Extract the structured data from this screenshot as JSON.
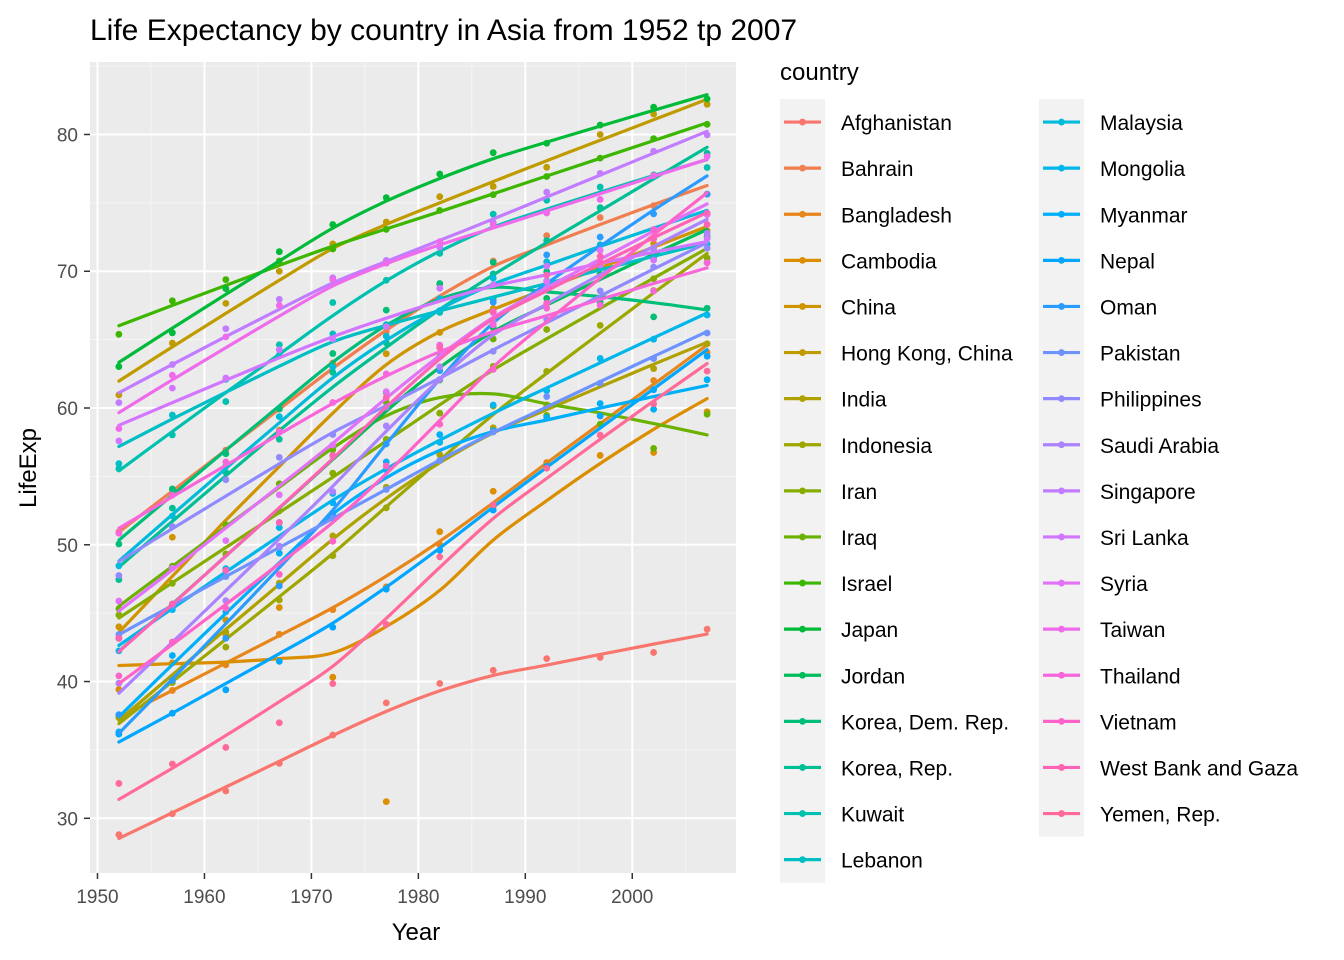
{
  "chart_data": {
    "type": "line",
    "title": "Life Expectancy by country in Asia from 1952 tp 2007",
    "xlabel": "Year",
    "ylabel": "LifeExp",
    "xlim": [
      1949.3,
      2009.7
    ],
    "ylim": [
      26.0,
      85.3
    ],
    "x_ticks": [
      1950,
      1960,
      1970,
      1980,
      1990,
      2000
    ],
    "y_ticks": [
      30,
      40,
      50,
      60,
      70,
      80
    ],
    "grid": true,
    "legend_title": "country",
    "legend_position": "right",
    "x": [
      1952,
      1957,
      1962,
      1967,
      1972,
      1977,
      1982,
      1987,
      1992,
      1997,
      2002,
      2007
    ],
    "series": [
      {
        "name": "Afghanistan",
        "color": "#F8766D",
        "values": [
          28.801,
          30.332,
          31.997,
          34.02,
          36.088,
          38.438,
          39.854,
          40.822,
          41.674,
          41.763,
          42.129,
          43.828
        ]
      },
      {
        "name": "Bahrain",
        "color": "#F07E4E",
        "values": [
          50.939,
          53.832,
          56.923,
          59.923,
          63.3,
          65.593,
          69.052,
          70.75,
          72.601,
          73.925,
          74.795,
          75.635
        ]
      },
      {
        "name": "Bangladesh",
        "color": "#E7861B",
        "values": [
          37.484,
          39.348,
          41.216,
          43.453,
          45.252,
          46.923,
          50.009,
          52.819,
          56.018,
          59.412,
          62.013,
          64.062
        ]
      },
      {
        "name": "Cambodia",
        "color": "#DB8E00",
        "values": [
          39.417,
          41.366,
          43.415,
          45.415,
          40.317,
          31.22,
          50.957,
          53.914,
          55.803,
          56.534,
          56.752,
          59.723
        ]
      },
      {
        "name": "China",
        "color": "#CF9400",
        "values": [
          44.0,
          50.54896,
          44.50136,
          58.38112,
          63.11888,
          63.96736,
          65.525,
          67.274,
          68.69,
          70.426,
          72.028,
          72.961
        ]
      },
      {
        "name": "Hong Kong, China",
        "color": "#C09B00",
        "values": [
          60.96,
          64.75,
          67.65,
          70.0,
          72.0,
          73.6,
          75.45,
          76.2,
          77.601,
          80.0,
          81.495,
          82.208
        ]
      },
      {
        "name": "India",
        "color": "#AFA100",
        "values": [
          37.373,
          40.249,
          43.605,
          47.193,
          50.651,
          54.208,
          56.596,
          58.553,
          60.223,
          61.765,
          62.879,
          64.698
        ]
      },
      {
        "name": "Indonesia",
        "color": "#9DA700",
        "values": [
          37.468,
          39.918,
          42.518,
          45.964,
          49.203,
          52.702,
          56.159,
          60.137,
          62.681,
          66.041,
          68.588,
          70.65
        ]
      },
      {
        "name": "Iran",
        "color": "#86AC00",
        "values": [
          44.869,
          47.181,
          49.325,
          52.469,
          55.234,
          57.702,
          59.62,
          63.04,
          65.742,
          68.042,
          69.451,
          70.964
        ]
      },
      {
        "name": "Iraq",
        "color": "#6BB100",
        "values": [
          45.32,
          48.437,
          51.457,
          54.459,
          56.95,
          60.413,
          62.038,
          65.044,
          59.461,
          58.811,
          57.046,
          59.545
        ]
      },
      {
        "name": "Israel",
        "color": "#3DB600",
        "values": [
          65.39,
          67.84,
          69.39,
          70.75,
          71.63,
          73.06,
          74.45,
          75.6,
          76.93,
          78.269,
          79.696,
          80.745
        ]
      },
      {
        "name": "Japan",
        "color": "#00BA38",
        "values": [
          63.03,
          65.5,
          68.73,
          71.43,
          73.42,
          75.38,
          77.11,
          78.67,
          79.36,
          80.69,
          82.0,
          82.603
        ]
      },
      {
        "name": "Jordan",
        "color": "#00BC5A",
        "values": [
          43.158,
          45.669,
          48.126,
          51.629,
          56.528,
          61.134,
          63.739,
          65.869,
          68.015,
          69.772,
          71.263,
          72.535
        ]
      },
      {
        "name": "Korea, Dem. Rep.",
        "color": "#00BE78",
        "values": [
          50.056,
          54.081,
          56.656,
          59.942,
          63.983,
          67.159,
          69.1,
          70.647,
          69.978,
          67.727,
          66.662,
          67.297
        ]
      },
      {
        "name": "Korea, Rep.",
        "color": "#00BF94",
        "values": [
          47.453,
          52.681,
          55.292,
          57.716,
          62.612,
          64.766,
          67.123,
          69.81,
          72.244,
          74.647,
          77.045,
          78.623
        ]
      },
      {
        "name": "Kuwait",
        "color": "#00C0AF",
        "values": [
          55.565,
          58.033,
          60.47,
          64.624,
          67.712,
          69.343,
          71.309,
          74.174,
          75.19,
          76.156,
          76.904,
          77.588
        ]
      },
      {
        "name": "Lebanon",
        "color": "#00BFC4",
        "values": [
          55.928,
          59.489,
          62.094,
          63.87,
          65.421,
          66.099,
          66.983,
          67.926,
          69.292,
          70.265,
          71.028,
          71.993
        ]
      },
      {
        "name": "Malaysia",
        "color": "#00BBD9",
        "values": [
          48.463,
          52.102,
          55.737,
          59.371,
          63.01,
          65.256,
          68.0,
          69.5,
          70.693,
          71.938,
          73.044,
          74.241
        ]
      },
      {
        "name": "Mongolia",
        "color": "#00B6EB",
        "values": [
          42.244,
          45.248,
          48.251,
          51.253,
          53.754,
          55.491,
          57.489,
          60.222,
          61.271,
          63.625,
          65.033,
          66.803
        ]
      },
      {
        "name": "Myanmar",
        "color": "#00AFF9",
        "values": [
          36.319,
          41.905,
          45.108,
          49.379,
          53.07,
          56.059,
          58.056,
          58.339,
          59.32,
          60.328,
          59.908,
          62.069
        ]
      },
      {
        "name": "Nepal",
        "color": "#00A6FF",
        "values": [
          36.157,
          37.686,
          39.393,
          41.472,
          43.971,
          46.748,
          49.594,
          52.537,
          55.727,
          59.426,
          61.34,
          63.785
        ]
      },
      {
        "name": "Oman",
        "color": "#2B9CFF",
        "values": [
          37.578,
          40.08,
          43.165,
          46.988,
          52.143,
          57.367,
          62.728,
          67.734,
          71.197,
          72.499,
          74.193,
          75.64
        ]
      },
      {
        "name": "Pakistan",
        "color": "#6E93FF",
        "values": [
          43.436,
          45.557,
          47.67,
          49.8,
          51.929,
          54.043,
          56.158,
          58.245,
          60.838,
          61.818,
          63.61,
          65.483
        ]
      },
      {
        "name": "Philippines",
        "color": "#918AFF",
        "values": [
          47.752,
          51.334,
          54.757,
          56.393,
          58.065,
          60.06,
          62.082,
          64.151,
          66.458,
          68.564,
          70.303,
          71.688
        ]
      },
      {
        "name": "Saudi Arabia",
        "color": "#AC83FF",
        "values": [
          39.875,
          42.868,
          45.914,
          49.901,
          53.886,
          58.69,
          63.012,
          66.295,
          68.768,
          70.533,
          71.626,
          72.777
        ]
      },
      {
        "name": "Singapore",
        "color": "#C17CFF",
        "values": [
          60.396,
          63.179,
          65.798,
          67.946,
          69.521,
          70.795,
          71.76,
          73.56,
          75.788,
          77.158,
          78.77,
          79.972
        ]
      },
      {
        "name": "Sri Lanka",
        "color": "#D376FF",
        "values": [
          57.593,
          61.456,
          62.192,
          64.266,
          65.042,
          65.949,
          68.757,
          69.011,
          70.379,
          70.457,
          70.815,
          72.396
        ]
      },
      {
        "name": "Syria",
        "color": "#E272F7",
        "values": [
          45.883,
          48.284,
          50.305,
          53.655,
          57.296,
          61.195,
          64.59,
          66.974,
          69.249,
          71.527,
          73.053,
          74.143
        ]
      },
      {
        "name": "Taiwan",
        "color": "#EF6BEB",
        "values": [
          58.5,
          62.4,
          65.2,
          67.5,
          69.39,
          70.59,
          72.16,
          73.4,
          74.26,
          75.25,
          76.99,
          78.4
        ]
      },
      {
        "name": "Thailand",
        "color": "#F866DC",
        "values": [
          50.848,
          53.63,
          56.061,
          58.285,
          60.405,
          62.494,
          64.597,
          66.084,
          67.298,
          67.521,
          68.564,
          70.616
        ]
      },
      {
        "name": "Vietnam",
        "color": "#FE63CA",
        "values": [
          40.412,
          42.887,
          45.363,
          47.838,
          50.254,
          55.764,
          58.816,
          62.82,
          67.662,
          70.672,
          73.017,
          74.249
        ]
      },
      {
        "name": "West Bank and Gaza",
        "color": "#FF63B5",
        "values": [
          43.16,
          45.671,
          48.127,
          51.631,
          56.532,
          60.765,
          64.406,
          67.046,
          69.718,
          71.096,
          72.37,
          73.422
        ]
      },
      {
        "name": "Yemen, Rep.",
        "color": "#FF6A98",
        "values": [
          32.548,
          33.97,
          35.18,
          36.984,
          39.848,
          44.175,
          49.113,
          52.922,
          55.599,
          58.02,
          60.308,
          62.698
        ]
      }
    ]
  }
}
